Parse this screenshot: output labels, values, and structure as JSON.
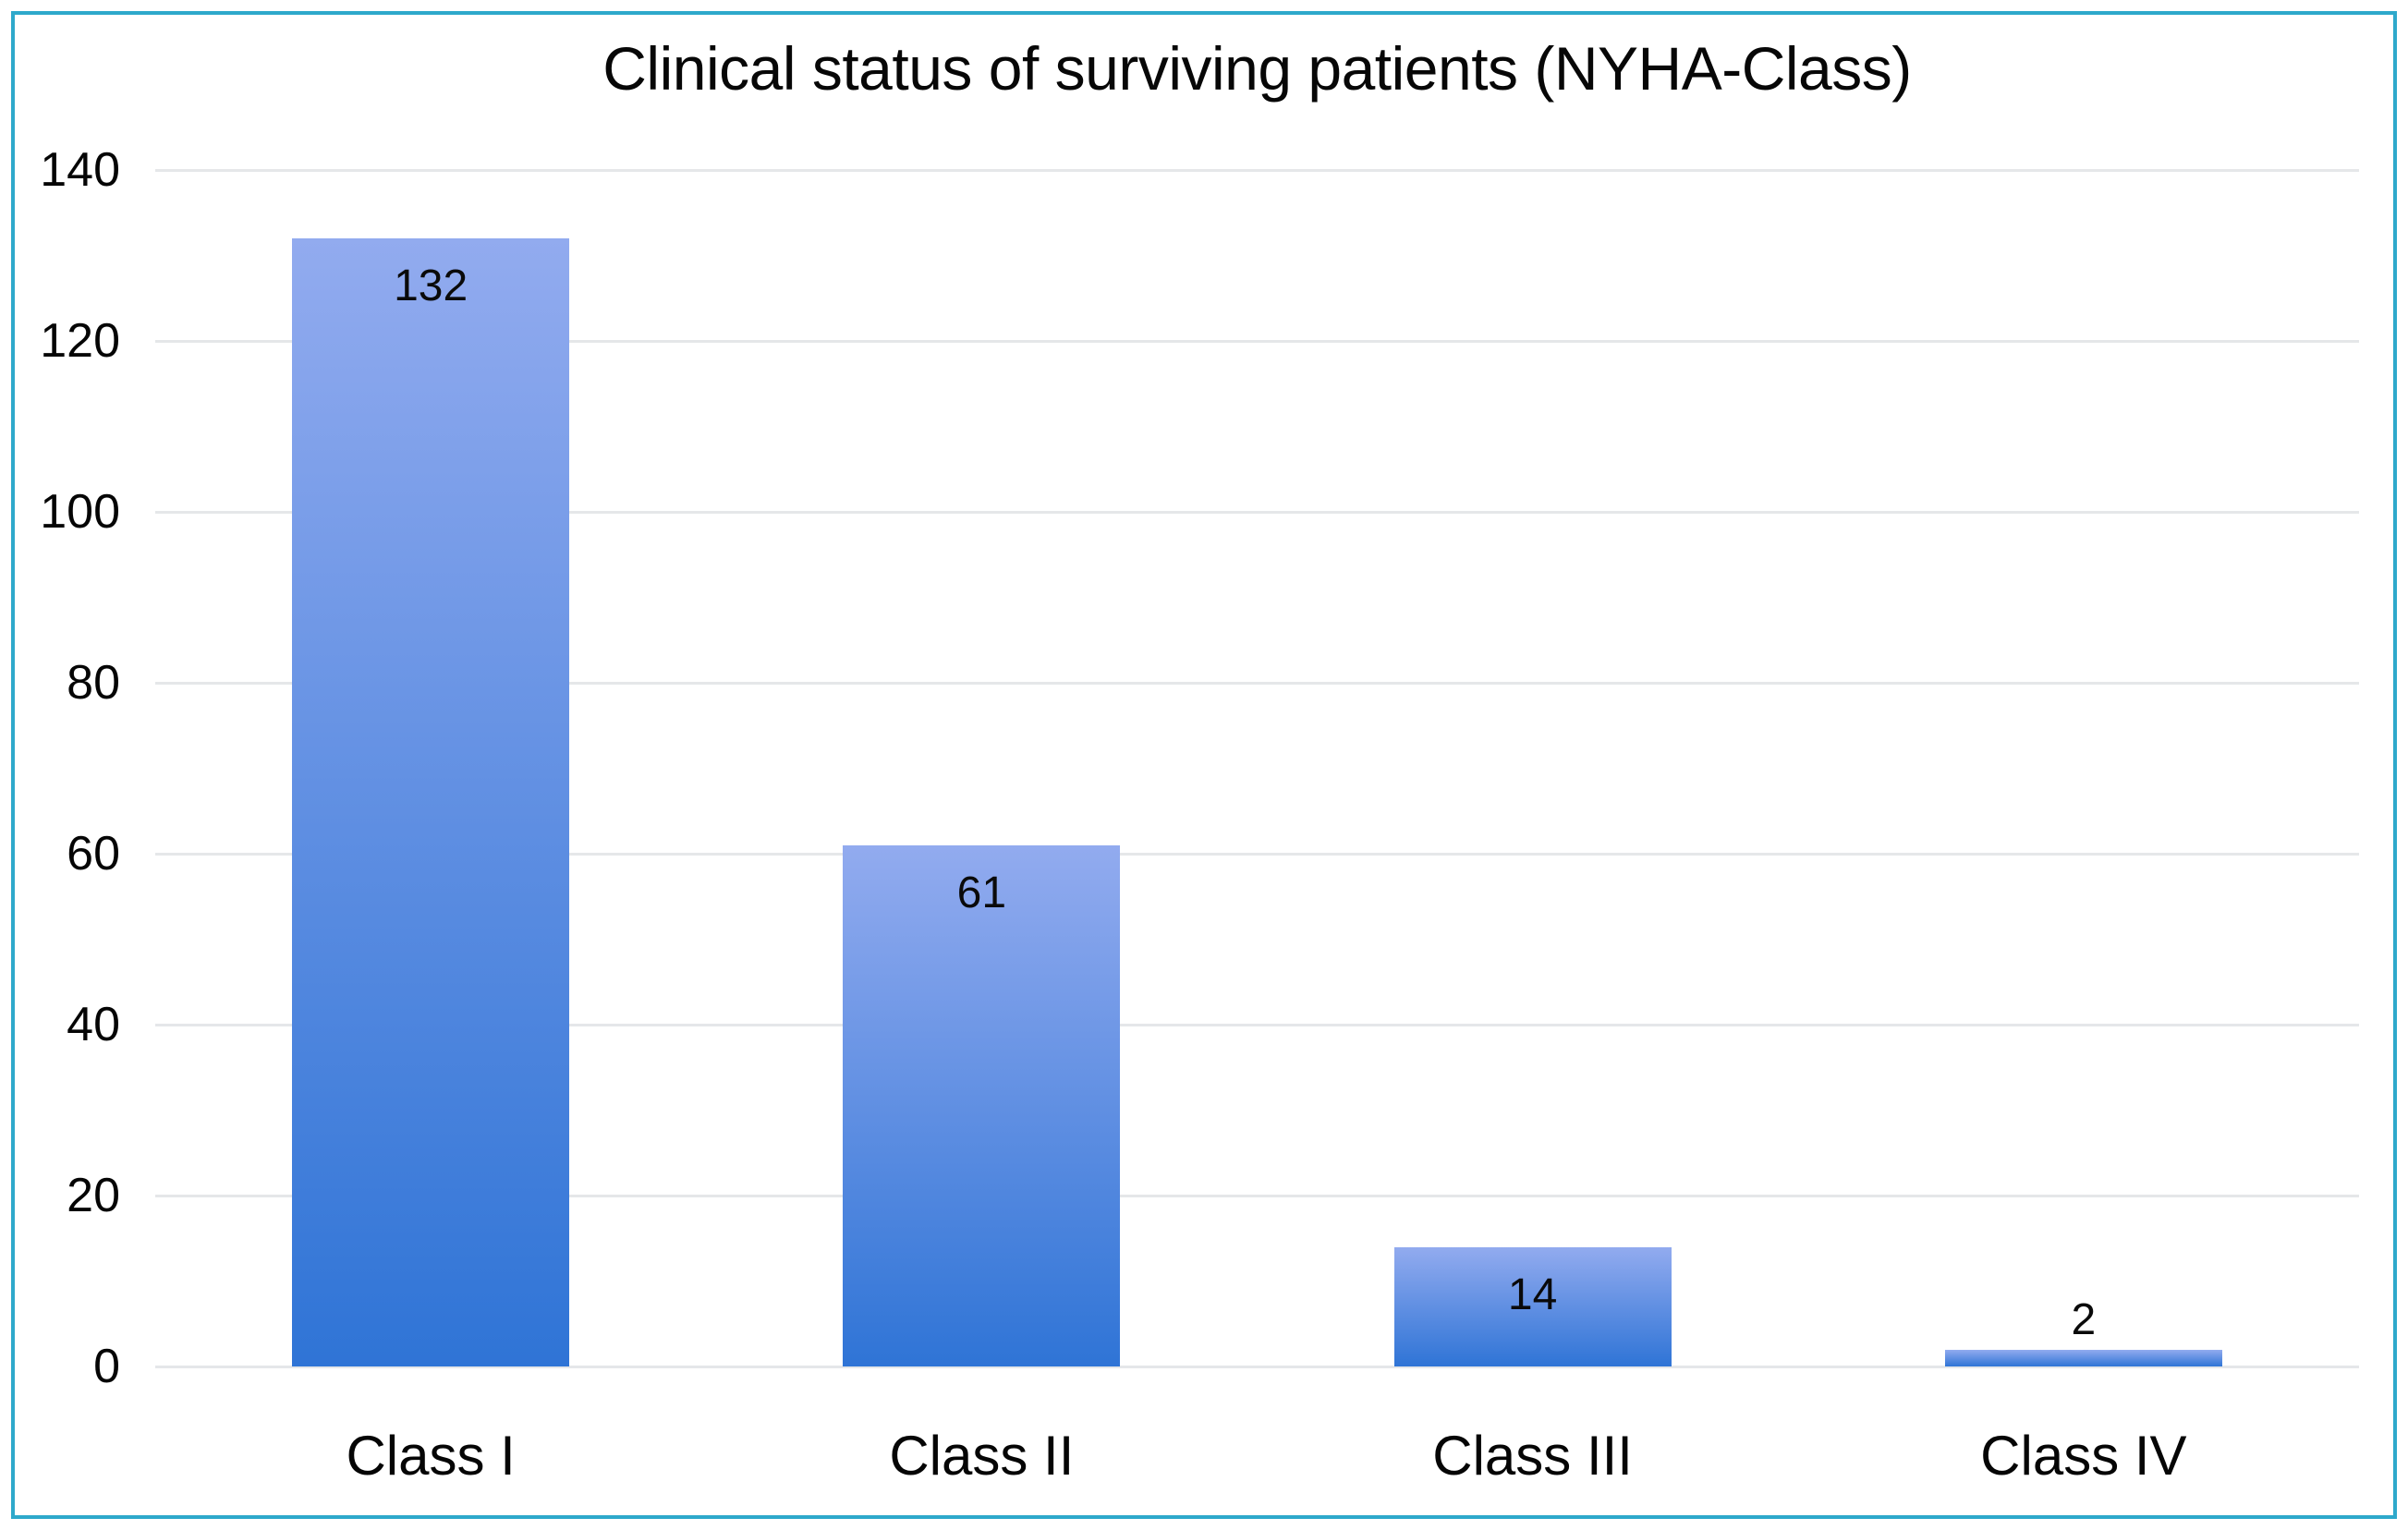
{
  "chart_data": {
    "type": "bar",
    "title": "Clinical status of surviving patients (NYHA-Class)",
    "categories": [
      "Class I",
      "Class II",
      "Class III",
      "Class IV"
    ],
    "values": [
      132,
      61,
      14,
      2
    ],
    "xlabel": "",
    "ylabel": "",
    "ylim": [
      0,
      140
    ],
    "yticks": [
      0,
      20,
      40,
      60,
      80,
      100,
      120,
      140
    ],
    "grid": true,
    "legend": false,
    "colors": {
      "bar_gradient_top": "#92ABEF",
      "bar_gradient_bottom": "#2F74D6",
      "gridline": "#E5E7E9",
      "frame_border": "#2EA9CB",
      "text": "#050505",
      "background": "#FFFFFF"
    }
  }
}
